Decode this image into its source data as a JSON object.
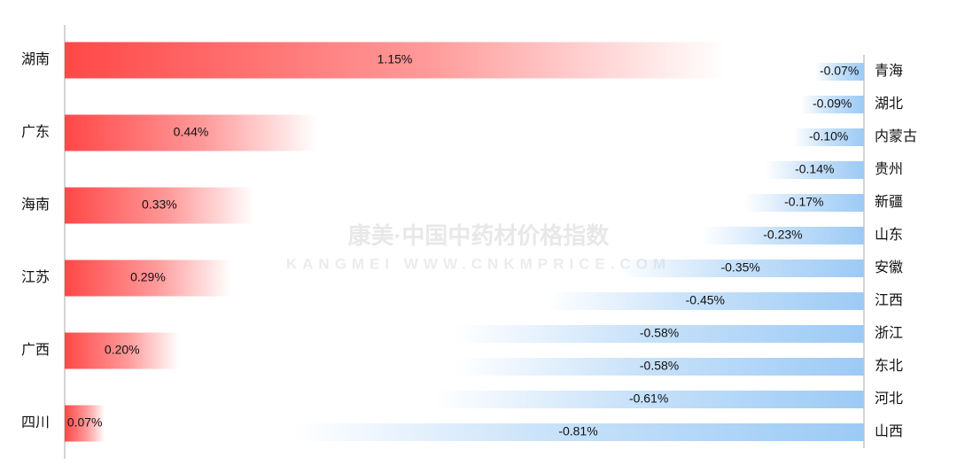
{
  "watermark": {
    "title": "康美·中国中药材价格指数",
    "subtitle": "KANGMEI WWW.CNKMPRICE.COM"
  },
  "chart_data": [
    {
      "type": "bar",
      "orientation": "horizontal",
      "color": "#ff4747",
      "categories": [
        "湖南",
        "广东",
        "海南",
        "江苏",
        "广西",
        "四川"
      ],
      "values": [
        1.15,
        0.44,
        0.33,
        0.29,
        0.2,
        0.07
      ],
      "value_labels": [
        "1.15%",
        "0.44%",
        "0.33%",
        "0.29%",
        "0.20%",
        "0.07%"
      ]
    },
    {
      "type": "bar",
      "orientation": "horizontal",
      "color": "#9ccaf5",
      "categories": [
        "青海",
        "湖北",
        "内蒙古",
        "贵州",
        "新疆",
        "山东",
        "安徽",
        "江西",
        "浙江",
        "东北",
        "河北",
        "山西"
      ],
      "values": [
        -0.07,
        -0.09,
        -0.1,
        -0.14,
        -0.17,
        -0.23,
        -0.35,
        -0.45,
        -0.58,
        -0.58,
        -0.61,
        -0.81
      ],
      "value_labels": [
        "-0.07%",
        "-0.09%",
        "-0.10%",
        "-0.14%",
        "-0.17%",
        "-0.23%",
        "-0.35%",
        "-0.45%",
        "-0.58%",
        "-0.58%",
        "-0.61%",
        "-0.81%"
      ]
    }
  ]
}
